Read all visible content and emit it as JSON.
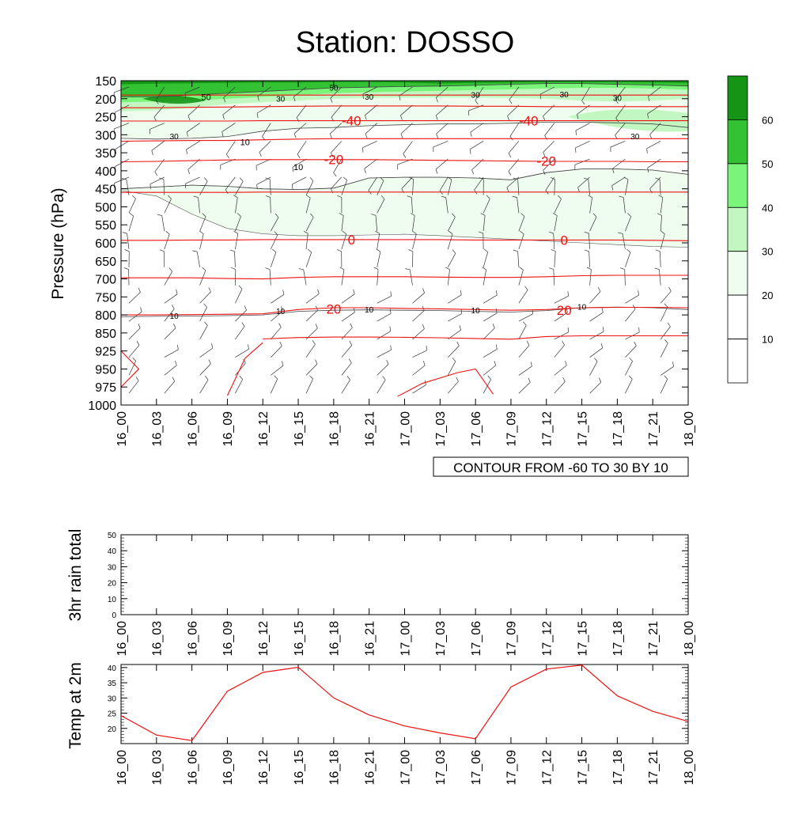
{
  "title": "Station: DOSSO",
  "time_labels": [
    "16_00",
    "16_03",
    "16_06",
    "16_09",
    "16_12",
    "16_15",
    "16_18",
    "16_21",
    "17_00",
    "17_03",
    "17_06",
    "17_09",
    "17_12",
    "17_15",
    "17_18",
    "17_21",
    "18_00"
  ],
  "chart_data": [
    {
      "type": "contour",
      "name": "upper-air",
      "ylabel": "Pressure (hPa)",
      "pressure_levels": [
        150,
        200,
        250,
        300,
        350,
        400,
        450,
        500,
        550,
        600,
        650,
        700,
        750,
        800,
        850,
        925,
        950,
        975,
        1000
      ],
      "yscale": "categorical",
      "info_label": "CONTOUR FROM -60 TO 30 BY 10",
      "colorbar": {
        "labels": [
          10,
          20,
          30,
          40,
          50,
          60
        ],
        "colors": [
          "#ffffff",
          "#ffffff",
          "#eefdee",
          "#c2f7c2",
          "#7af57a",
          "#33c233",
          "#169416"
        ]
      },
      "temperature_contours": [
        {
          "label": "",
          "p": [
            190,
            190,
            190,
            190,
            190,
            190,
            190,
            190,
            190,
            190,
            190,
            190,
            190,
            190,
            190,
            190,
            190
          ]
        },
        {
          "label": "",
          "p": [
            225,
            225,
            224,
            223,
            222,
            221,
            220,
            220,
            220,
            220,
            221,
            221,
            222,
            222,
            222,
            222,
            222
          ]
        },
        {
          "label": "-40",
          "p": [
            262,
            262,
            262,
            262,
            261,
            261,
            261,
            261,
            261,
            261,
            261,
            261,
            261,
            261,
            261,
            261,
            261
          ]
        },
        {
          "label": "",
          "p": [
            318,
            317,
            316,
            316,
            314,
            312,
            311,
            311,
            311,
            311,
            311,
            311,
            311,
            311,
            311,
            311,
            311
          ]
        },
        {
          "label": "-20",
          "p": [
            375,
            374,
            372,
            370,
            369,
            369,
            369,
            369,
            370,
            371,
            372,
            373,
            374,
            374,
            374,
            375,
            375
          ]
        },
        {
          "label": "",
          "p": [
            460,
            460,
            460,
            460,
            459,
            459,
            459,
            459,
            459,
            459,
            459,
            459,
            459,
            459,
            459,
            459,
            459
          ]
        },
        {
          "label": "0",
          "p": [
            593,
            593,
            592,
            592,
            591,
            591,
            591,
            591,
            591,
            591,
            592,
            592,
            592,
            592,
            592,
            593,
            594
          ]
        },
        {
          "label": "",
          "p": [
            697,
            697,
            697,
            699,
            700,
            696,
            694,
            694,
            694,
            695,
            696,
            696,
            694,
            691,
            690,
            690,
            690
          ]
        },
        {
          "label": "20",
          "p": [
            800,
            800,
            799,
            798,
            797,
            785,
            780,
            780,
            782,
            783,
            785,
            787,
            785,
            780,
            779,
            779,
            780
          ]
        },
        {
          "label": "",
          "p": [
            null,
            null,
            null,
            null,
            875,
            869,
            867,
            867,
            868,
            870,
            873,
            876,
            865,
            862,
            862,
            862,
            862
          ]
        },
        {
          "label": "",
          "p": [
            null,
            null,
            null,
            null,
            null,
            null,
            null,
            null,
            null,
            null,
            null,
            null,
            null,
            null,
            null,
            null,
            null
          ]
        }
      ],
      "wind_speed_contours": [
        {
          "label": "10",
          "p": [
            805,
            804,
            803,
            802,
            800,
            790,
            787,
            786,
            787,
            788,
            790,
            792,
            788,
            780,
            778,
            780,
            785
          ]
        },
        {
          "label": "20",
          "p": [
            450,
            445,
            440,
            443,
            450,
            452,
            448,
            420,
            418,
            418,
            420,
            425,
            405,
            395,
            395,
            398,
            410
          ]
        },
        {
          "label": "30",
          "p": [
            310,
            312,
            310,
            305,
            290,
            282,
            280,
            275,
            272,
            270,
            270,
            268,
            265,
            265,
            267,
            270,
            280
          ]
        },
        {
          "label": "50",
          "p": [
            195,
            195,
            190,
            185,
            180,
            175,
            170,
            168,
            166,
            165,
            163,
            160,
            158,
            158,
            160,
            162,
            165
          ]
        }
      ],
      "other_contour_labels": [
        "10",
        "10",
        "10",
        "10",
        "10",
        "30",
        "30",
        "30",
        "30",
        "30",
        "30",
        "30",
        "50"
      ],
      "colors": {
        "temperature": "#ee1111",
        "wind_speed": "#444444",
        "fill_light": "#eefdee",
        "fill_mid": "#c2f7c2",
        "fill_green": "#7af57a",
        "fill_dark": "#33c233",
        "fill_darkest": "#169416"
      }
    },
    {
      "type": "line",
      "name": "rain",
      "ylabel": "3hr rain total",
      "ylim": [
        0,
        50
      ],
      "yticks": [
        0,
        10,
        20,
        30,
        40,
        50
      ],
      "values": [
        0,
        0,
        0,
        0,
        0,
        0,
        0,
        0,
        0,
        0,
        0,
        0,
        0,
        0,
        0,
        0,
        0
      ]
    },
    {
      "type": "line",
      "name": "temp2m",
      "ylabel": "Temp at 2m",
      "ylim": [
        15,
        41
      ],
      "yticks": [
        20,
        25,
        30,
        35,
        40
      ],
      "values": [
        24.2,
        17.8,
        16.0,
        32.2,
        38.4,
        40.1,
        30.0,
        24.4,
        20.8,
        18.5,
        16.6,
        33.6,
        39.5,
        40.8,
        30.7,
        25.6,
        22.3
      ],
      "color": "#ee1111"
    }
  ]
}
